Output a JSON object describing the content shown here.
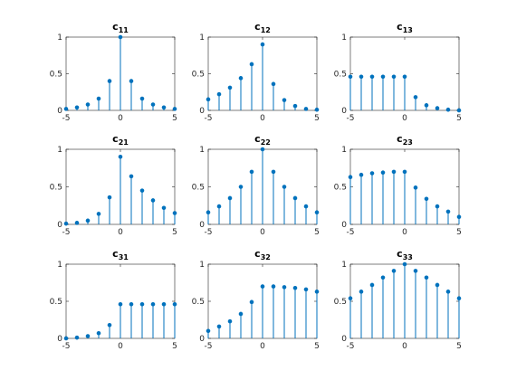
{
  "chart_data": [
    {
      "type": "stem",
      "title": "c",
      "title_subscript": "11",
      "x": [
        -5,
        -4,
        -3,
        -2,
        -1,
        0,
        1,
        2,
        3,
        4,
        5
      ],
      "values": [
        0.02,
        0.04,
        0.08,
        0.16,
        0.4,
        1,
        0.4,
        0.16,
        0.08,
        0.04,
        0.02
      ],
      "color": "#0072bd",
      "xlim": [
        -5,
        5
      ],
      "ylim": [
        0,
        1
      ],
      "xticks": [
        -5,
        0,
        5
      ],
      "yticks": [
        0,
        0.5,
        1
      ]
    },
    {
      "type": "stem",
      "title": "c",
      "title_subscript": "12",
      "x": [
        -5,
        -4,
        -3,
        -2,
        -1,
        0,
        1,
        2,
        3,
        4,
        5
      ],
      "values": [
        0.15,
        0.22,
        0.31,
        0.44,
        0.63,
        0.9,
        0.36,
        0.14,
        0.06,
        0.02,
        0.01
      ],
      "color": "#0072bd",
      "xlim": [
        -5,
        5
      ],
      "ylim": [
        0,
        1
      ],
      "xticks": [
        -5,
        0,
        5
      ],
      "yticks": [
        0,
        0.5,
        1
      ]
    },
    {
      "type": "stem",
      "title": "c",
      "title_subscript": "13",
      "x": [
        -5,
        -4,
        -3,
        -2,
        -1,
        0,
        1,
        2,
        3,
        4,
        5
      ],
      "values": [
        0.46,
        0.46,
        0.46,
        0.46,
        0.46,
        0.46,
        0.18,
        0.07,
        0.03,
        0.01,
        0
      ],
      "color": "#0072bd",
      "xlim": [
        -5,
        5
      ],
      "ylim": [
        0,
        1
      ],
      "xticks": [
        -5,
        0,
        5
      ],
      "yticks": [
        0,
        0.5,
        1
      ]
    },
    {
      "type": "stem",
      "title": "c",
      "title_subscript": "21",
      "x": [
        -5,
        -4,
        -3,
        -2,
        -1,
        0,
        1,
        2,
        3,
        4,
        5
      ],
      "values": [
        0.01,
        0.02,
        0.05,
        0.14,
        0.36,
        0.9,
        0.64,
        0.45,
        0.32,
        0.22,
        0.15
      ],
      "color": "#0072bd",
      "xlim": [
        -5,
        5
      ],
      "ylim": [
        0,
        1
      ],
      "xticks": [
        -5,
        0,
        5
      ],
      "yticks": [
        0,
        0.5,
        1
      ]
    },
    {
      "type": "stem",
      "title": "c",
      "title_subscript": "22",
      "x": [
        -5,
        -4,
        -3,
        -2,
        -1,
        0,
        1,
        2,
        3,
        4,
        5
      ],
      "values": [
        0.16,
        0.24,
        0.35,
        0.5,
        0.7,
        1,
        0.7,
        0.5,
        0.35,
        0.24,
        0.16
      ],
      "color": "#0072bd",
      "xlim": [
        -5,
        5
      ],
      "ylim": [
        0,
        1
      ],
      "xticks": [
        -5,
        0,
        5
      ],
      "yticks": [
        0,
        0.5,
        1
      ]
    },
    {
      "type": "stem",
      "title": "c",
      "title_subscript": "23",
      "x": [
        -5,
        -4,
        -3,
        -2,
        -1,
        0,
        1,
        2,
        3,
        4,
        5
      ],
      "values": [
        0.63,
        0.66,
        0.68,
        0.69,
        0.7,
        0.7,
        0.49,
        0.34,
        0.24,
        0.17,
        0.1
      ],
      "color": "#0072bd",
      "xlim": [
        -5,
        5
      ],
      "ylim": [
        0,
        1
      ],
      "xticks": [
        -5,
        0,
        5
      ],
      "yticks": [
        0,
        0.5,
        1
      ]
    },
    {
      "type": "stem",
      "title": "c",
      "title_subscript": "31",
      "x": [
        -5,
        -4,
        -3,
        -2,
        -1,
        0,
        1,
        2,
        3,
        4,
        5
      ],
      "values": [
        0,
        0.01,
        0.03,
        0.07,
        0.18,
        0.46,
        0.46,
        0.46,
        0.46,
        0.46,
        0.46
      ],
      "color": "#0072bd",
      "xlim": [
        -5,
        5
      ],
      "ylim": [
        0,
        1
      ],
      "xticks": [
        -5,
        0,
        5
      ],
      "yticks": [
        0,
        0.5,
        1
      ]
    },
    {
      "type": "stem",
      "title": "c",
      "title_subscript": "32",
      "x": [
        -5,
        -4,
        -3,
        -2,
        -1,
        0,
        1,
        2,
        3,
        4,
        5
      ],
      "values": [
        0.1,
        0.16,
        0.23,
        0.33,
        0.49,
        0.7,
        0.7,
        0.69,
        0.68,
        0.66,
        0.63
      ],
      "color": "#0072bd",
      "xlim": [
        -5,
        5
      ],
      "ylim": [
        0,
        1
      ],
      "xticks": [
        -5,
        0,
        5
      ],
      "yticks": [
        0,
        0.5,
        1
      ]
    },
    {
      "type": "stem",
      "title": "c",
      "title_subscript": "33",
      "x": [
        -5,
        -4,
        -3,
        -2,
        -1,
        0,
        1,
        2,
        3,
        4,
        5
      ],
      "values": [
        0.54,
        0.63,
        0.72,
        0.82,
        0.91,
        1,
        0.91,
        0.82,
        0.72,
        0.63,
        0.54
      ],
      "color": "#0072bd",
      "xlim": [
        -5,
        5
      ],
      "ylim": [
        0,
        1
      ],
      "xticks": [
        -5,
        0,
        5
      ],
      "yticks": [
        0,
        0.5,
        1
      ]
    }
  ]
}
